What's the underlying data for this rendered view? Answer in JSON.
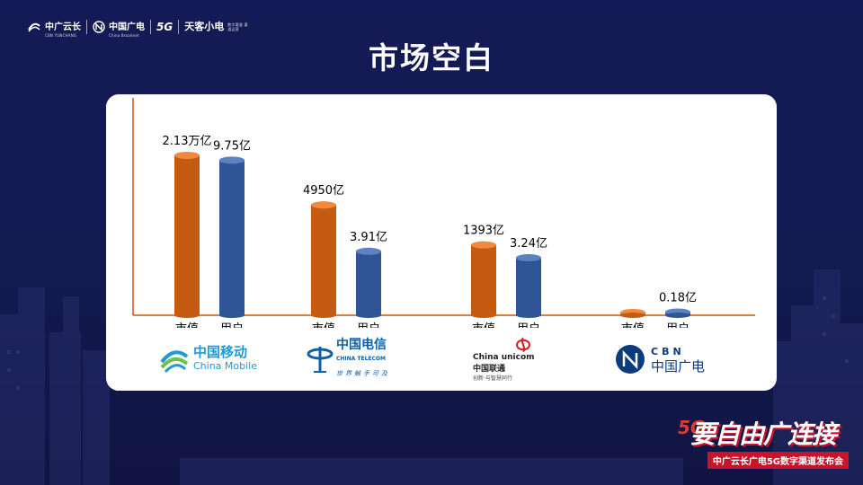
{
  "header": {
    "brands": [
      {
        "name": "中广云长",
        "sub": "CBN YUNCHANG"
      },
      {
        "name": "中国广电",
        "sub": "China Broadnet"
      },
      {
        "name": "5G",
        "sub": ""
      },
      {
        "name": "天客小电",
        "sub": "数字渠道 渠道运营"
      }
    ]
  },
  "title": "市场空白",
  "chart_data": {
    "type": "bar",
    "categories": [
      "中国移动",
      "中国电信",
      "中国联通",
      "中国广电"
    ],
    "series": [
      {
        "name": "市值",
        "labels": [
          "2.13万亿",
          "4950亿",
          "1393亿",
          ""
        ],
        "color": "#c55a11"
      },
      {
        "name": "用户",
        "labels": [
          "9.75亿",
          "3.91亿",
          "3.24亿",
          "0.18亿"
        ],
        "color": "#2f5597"
      }
    ],
    "bar_level": {
      "市值": [
        1.0,
        0.69,
        0.44,
        0.01
      ],
      "用户": [
        0.97,
        0.4,
        0.36,
        0.02
      ]
    },
    "group_labels": [
      "市值",
      "用户"
    ]
  },
  "logos": [
    {
      "name": "中国移动",
      "sub": "China Mobile",
      "color": "#1e9ad6"
    },
    {
      "name": "中国电信",
      "sub": "CHINA TELECOM",
      "tagline": "世界触手可及",
      "color": "#0d5fa8"
    },
    {
      "name": "China unicom 中国联通",
      "sub": "创新·与智慧同行",
      "color": "#d61e26"
    },
    {
      "name": "中国广电",
      "sub": "CBN",
      "color": "#0a3b7d"
    }
  ],
  "event": {
    "five_g": "5G",
    "main": "要自由广连接",
    "subtitle": "中广云长广电5G数字渠道发布会"
  }
}
